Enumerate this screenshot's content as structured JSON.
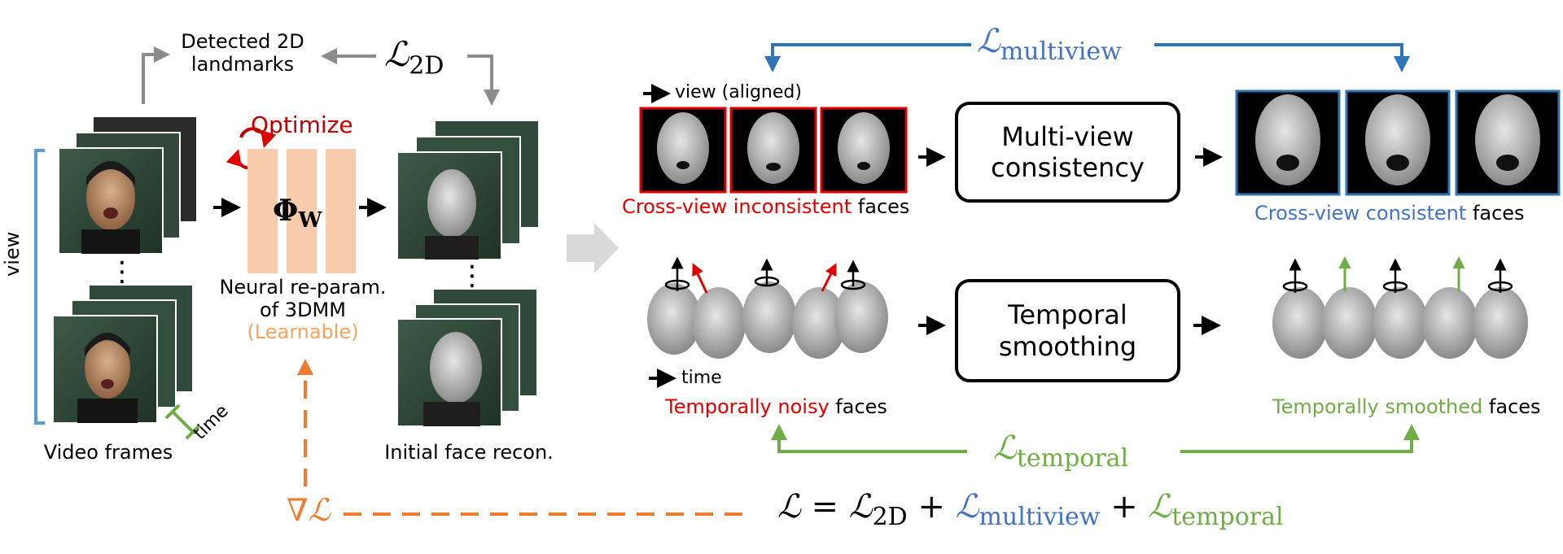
{
  "left": {
    "detected_landmarks": "Detected 2D landmarks",
    "detected_landmarks_line1": "Detected 2D",
    "detected_landmarks_line2": "landmarks",
    "loss_2d": {
      "symbol": "ℒ",
      "sub": "2D"
    },
    "optimize": "Optimize",
    "phi": {
      "symbol": "Φ",
      "sub": "W"
    },
    "view_label": "view",
    "time_label": "time",
    "video_frames": "Video frames",
    "neural_reparam_line1": "Neural re-param.",
    "neural_reparam_line2": "of 3DMM",
    "learnable": "(Learnable)",
    "initial_face_recon": "Initial face recon.",
    "ellipsis": "⋮"
  },
  "right": {
    "loss_multiview": {
      "symbol": "ℒ",
      "sub": "multiview"
    },
    "view_aligned": "view (aligned)",
    "cross_view_inconsistent": "Cross-view inconsistent",
    "faces_word": "faces",
    "multi_view_line1": "Multi-view",
    "multi_view_line2": "consistency",
    "cross_view_consistent": "Cross-view consistent",
    "time_label": "time",
    "temporally_noisy": "Temporally noisy",
    "temporal_line1": "Temporal",
    "temporal_line2": "smoothing",
    "temporally_smoothed": "Temporally smoothed",
    "loss_temporal": {
      "symbol": "ℒ",
      "sub": "temporal"
    }
  },
  "bottom": {
    "grad_loss": "∇ℒ",
    "total_loss": {
      "lhs": "ℒ",
      "eq": "=",
      "t1": "ℒ",
      "t1_sub": "2D",
      "plus": "+",
      "t2": "ℒ",
      "t2_sub": "multiview",
      "t3": "ℒ",
      "t3_sub": "temporal"
    }
  },
  "colors": {
    "blue": "#2e75b6",
    "blue_text": "#4472c4",
    "red": "#c00000",
    "green": "#70ad47",
    "orange": "#ed7d31",
    "orange_text": "#f4a460",
    "gray": "#8c8c8c",
    "peach": "#f8cbad",
    "frame_green": "#2f4a3a",
    "face_gray": "#a8a8a8"
  }
}
